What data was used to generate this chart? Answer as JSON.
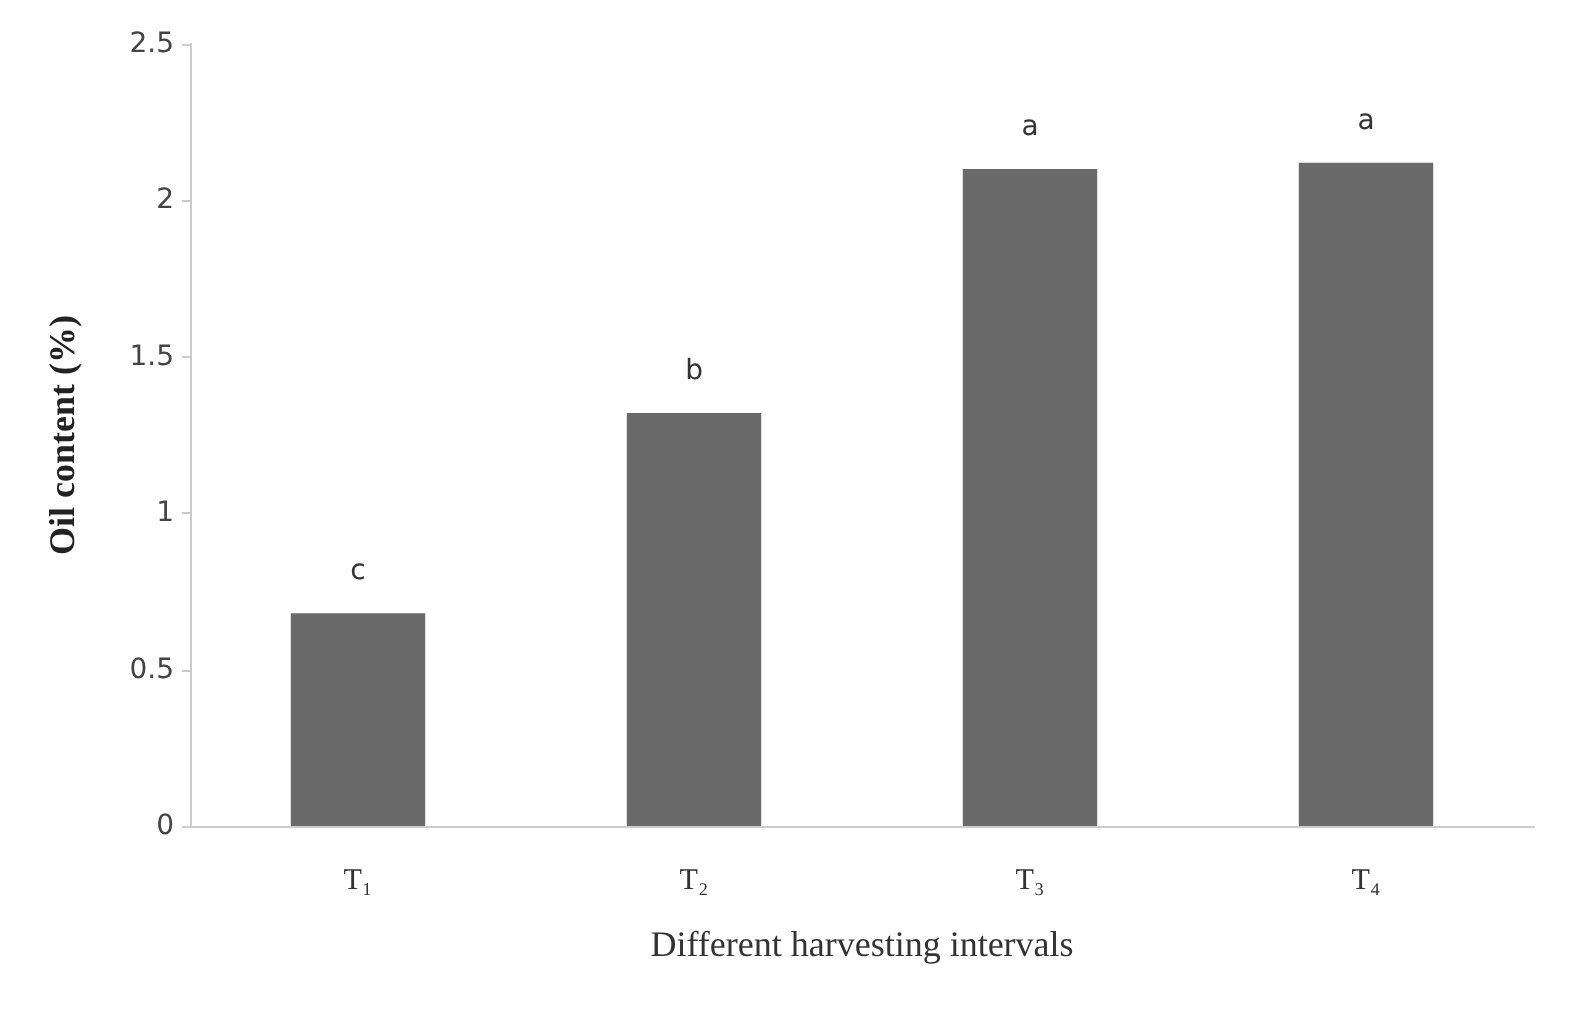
{
  "chart_data": {
    "type": "bar",
    "xlabel": "Different harvesting intervals",
    "ylabel": "Oil content (%)",
    "categories": [
      "T₁",
      "T₂",
      "T₃",
      "T₄"
    ],
    "values": [
      0.68,
      1.32,
      2.1,
      2.12
    ],
    "color": "#6a6a6a",
    "ylim": [
      0,
      2.5
    ],
    "yticks": [
      0,
      0.5,
      1,
      1.5,
      2,
      2.5
    ],
    "grid": false,
    "annotations": [
      {
        "text": "c",
        "x": "T₁",
        "y": 0.68
      },
      {
        "text": "b",
        "x": "T₂",
        "y": 1.32
      },
      {
        "text": "a",
        "x": "T₃",
        "y": 2.1
      },
      {
        "text": "a",
        "x": "T₄",
        "y": 2.12
      }
    ]
  }
}
